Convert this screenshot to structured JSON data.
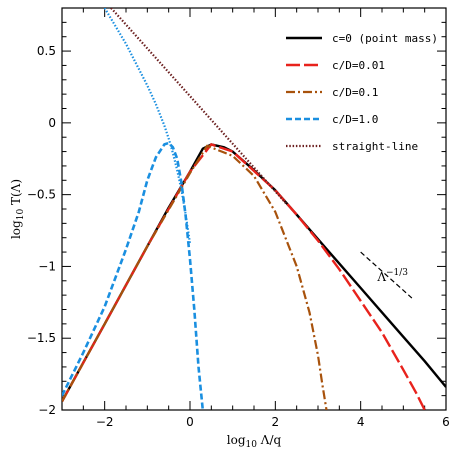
{
  "chart_data": {
    "type": "line",
    "xlabel": "log10 Λ/q",
    "ylabel": "log10 T(Λ)",
    "xlim": [
      -3,
      6
    ],
    "ylim": [
      -2,
      0.8
    ],
    "xticks": [
      -2,
      0,
      2,
      4,
      6
    ],
    "xtick_labels": [
      "−2",
      "0",
      "2",
      "4",
      "6"
    ],
    "yticks": [
      -2,
      -1.5,
      -1,
      -0.5,
      0,
      0.5
    ],
    "ytick_labels": [
      "−2",
      "−1.5",
      "−1",
      "−0.5",
      "0",
      "0.5"
    ],
    "legend_position": "top-right",
    "series": [
      {
        "name": "c=0 (point mass)",
        "color": "#000000",
        "dash": "solid",
        "x": [
          -3,
          -2.5,
          -2,
          -1.5,
          -1,
          -0.5,
          0,
          0.3,
          0.5,
          0.8,
          1.0,
          1.5,
          2,
          2.5,
          3,
          3.5,
          4,
          4.5,
          5,
          5.5,
          6
        ],
        "y": [
          -1.94,
          -1.67,
          -1.4,
          -1.13,
          -0.86,
          -0.59,
          -0.34,
          -0.18,
          -0.15,
          -0.17,
          -0.2,
          -0.33,
          -0.47,
          -0.64,
          -0.81,
          -0.98,
          -1.15,
          -1.32,
          -1.49,
          -1.66,
          -1.84
        ]
      },
      {
        "name": "c/D=0.01",
        "color": "#e8221c",
        "dash": "long-dash",
        "x": [
          -3,
          -2,
          -1,
          0,
          0.5,
          1,
          2,
          2.5,
          3,
          3.5,
          4,
          4.5,
          5,
          5.3,
          5.5
        ],
        "y": [
          -1.94,
          -1.4,
          -0.86,
          -0.34,
          -0.15,
          -0.2,
          -0.47,
          -0.64,
          -0.82,
          -1.02,
          -1.24,
          -1.46,
          -1.72,
          -1.88,
          -2.0
        ]
      },
      {
        "name": "c/D=0.1",
        "color": "#a8520c",
        "dash": "dash-dot",
        "x": [
          -3,
          -2,
          -1,
          0,
          0.4,
          1,
          1.5,
          2,
          2.5,
          2.8,
          3.0,
          3.1,
          3.2
        ],
        "y": [
          -1.94,
          -1.4,
          -0.86,
          -0.35,
          -0.16,
          -0.23,
          -0.37,
          -0.62,
          -1.0,
          -1.32,
          -1.62,
          -1.82,
          -2.0
        ]
      },
      {
        "name": "c/D=1.0",
        "color": "#1a8fe0",
        "dash": "dashed",
        "x": [
          -3,
          -2.5,
          -2,
          -1.5,
          -1.2,
          -1.0,
          -0.8,
          -0.6,
          -0.5,
          -0.4,
          -0.3,
          -0.2,
          -0.1,
          0,
          0.1,
          0.2,
          0.3
        ],
        "y": [
          -1.9,
          -1.6,
          -1.28,
          -0.88,
          -0.62,
          -0.4,
          -0.24,
          -0.15,
          -0.14,
          -0.17,
          -0.25,
          -0.42,
          -0.65,
          -0.95,
          -1.3,
          -1.7,
          -2.0
        ]
      },
      {
        "name": "straight-line",
        "color": "#6b1f1f",
        "dash": "dotted",
        "x": [
          -1.85,
          2.25
        ],
        "y": [
          0.8,
          -0.56
        ]
      },
      {
        "name": "",
        "color": "#1a8fe0",
        "dash": "dotted",
        "x": [
          -2.0,
          -1.5,
          -1.0,
          -0.8,
          -0.6,
          -0.5,
          -0.4,
          -0.3,
          -0.2,
          -0.1,
          0.0
        ],
        "y": [
          0.8,
          0.55,
          0.26,
          0.13,
          -0.02,
          -0.11,
          -0.21,
          -0.33,
          -0.47,
          -0.64,
          -0.84
        ]
      }
    ],
    "annotations": [
      {
        "text": "Λ",
        "superscript": "−1/3",
        "x": 4.75,
        "y": -1.1
      },
      {
        "segment": [
          [
            4.0,
            -0.9
          ],
          [
            5.2,
            -1.22
          ]
        ]
      }
    ]
  }
}
